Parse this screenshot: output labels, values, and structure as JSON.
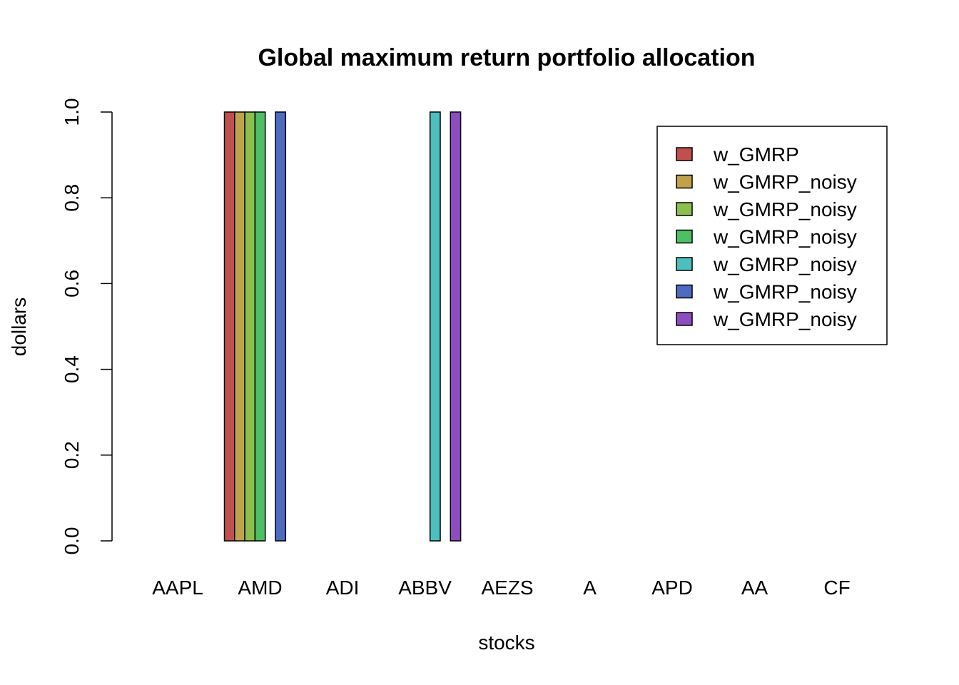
{
  "chart_data": {
    "type": "bar",
    "title": "Global maximum return portfolio allocation",
    "xlabel": "stocks",
    "ylabel": "dollars",
    "ylim": [
      0,
      1
    ],
    "yticks": [
      "0.0",
      "0.2",
      "0.4",
      "0.6",
      "0.8",
      "1.0"
    ],
    "categories": [
      "AAPL",
      "AMD",
      "ADI",
      "ABBV",
      "AEZS",
      "A",
      "APD",
      "AA",
      "CF"
    ],
    "legend_position": "top-right",
    "grid": false,
    "series": [
      {
        "name": "w_GMRP",
        "color": "#c0504d",
        "values": [
          0,
          1,
          0,
          0,
          0,
          0,
          0,
          0,
          0
        ]
      },
      {
        "name": "w_GMRP_noisy",
        "color": "#c0a24d",
        "values": [
          0,
          1,
          0,
          0,
          0,
          0,
          0,
          0,
          0
        ]
      },
      {
        "name": "w_GMRP_noisy",
        "color": "#8cbf4d",
        "values": [
          0,
          1,
          0,
          0,
          0,
          0,
          0,
          0,
          0
        ]
      },
      {
        "name": "w_GMRP_noisy",
        "color": "#4dbf65",
        "values": [
          0,
          1,
          0,
          0,
          0,
          0,
          0,
          0,
          0
        ]
      },
      {
        "name": "w_GMRP_noisy",
        "color": "#4dbfbf",
        "values": [
          0,
          0,
          0,
          1,
          0,
          0,
          0,
          0,
          0
        ]
      },
      {
        "name": "w_GMRP_noisy",
        "color": "#4d6bbf",
        "values": [
          0,
          1,
          0,
          0,
          0,
          0,
          0,
          0,
          0
        ]
      },
      {
        "name": "w_GMRP_noisy",
        "color": "#8c4dbf",
        "values": [
          0,
          0,
          0,
          1,
          0,
          0,
          0,
          0,
          0
        ]
      }
    ]
  }
}
